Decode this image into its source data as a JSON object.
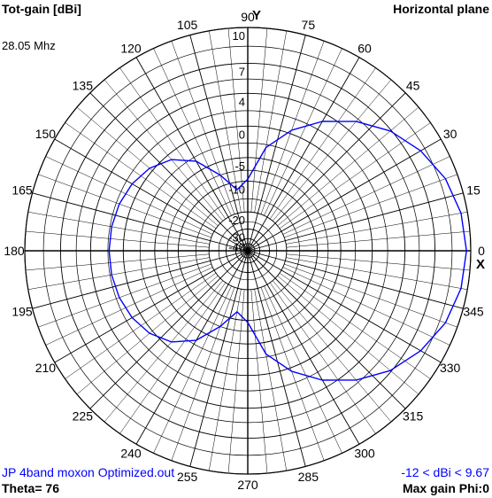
{
  "header": {
    "title": "Tot-gain [dBi]",
    "plane": "Horizontal plane",
    "frequency": "28.05 Mhz"
  },
  "footer": {
    "file": "JP 4band moxon Optimized.out",
    "theta": "Theta= 76",
    "range": "-12 < dBi < 9.67",
    "max_gain": "Max gain Phi:0"
  },
  "chart_data": {
    "type": "polar",
    "title": "Tot-gain [dBi]",
    "subtitle": "Horizontal plane",
    "angle_labels": [
      "0",
      "15",
      "30",
      "45",
      "60",
      "75",
      "90",
      "105",
      "120",
      "135",
      "150",
      "165",
      "180",
      "195",
      "210",
      "225",
      "240",
      "255",
      "270",
      "285",
      "300",
      "315",
      "330",
      "345"
    ],
    "radial_labels": [
      "10",
      "7",
      "4",
      "0",
      "-5",
      "-10",
      "-20",
      "-30",
      "-40"
    ],
    "radial_values_dbi": [
      10,
      7,
      4,
      0,
      -5,
      -10,
      -20,
      -30,
      -40
    ],
    "axis_labels": {
      "x": "X",
      "y": "Y"
    },
    "pattern_color": "#0000ff",
    "grid_color": "#000000",
    "max_gain_dbi": 9.67,
    "min_gain_dbi": -12,
    "series": [
      {
        "angles_deg": [
          0,
          10,
          20,
          30,
          40,
          50,
          60,
          70,
          80,
          90,
          100,
          110,
          120,
          130,
          140,
          150,
          160,
          170,
          180,
          190,
          200,
          210,
          220,
          230,
          240,
          250,
          260,
          270
        ],
        "gain_dbi": [
          9.67,
          9.5,
          9.0,
          8.1,
          6.9,
          5.2,
          3.1,
          0.5,
          -3.0,
          -9.5,
          -12.0,
          -7.5,
          -3.2,
          -0.8,
          0.5,
          1.2,
          1.6,
          1.8,
          1.85,
          1.8,
          1.6,
          1.2,
          0.5,
          -0.8,
          -3.2,
          -7.5,
          -12.0,
          -9.5
        ]
      }
    ]
  }
}
